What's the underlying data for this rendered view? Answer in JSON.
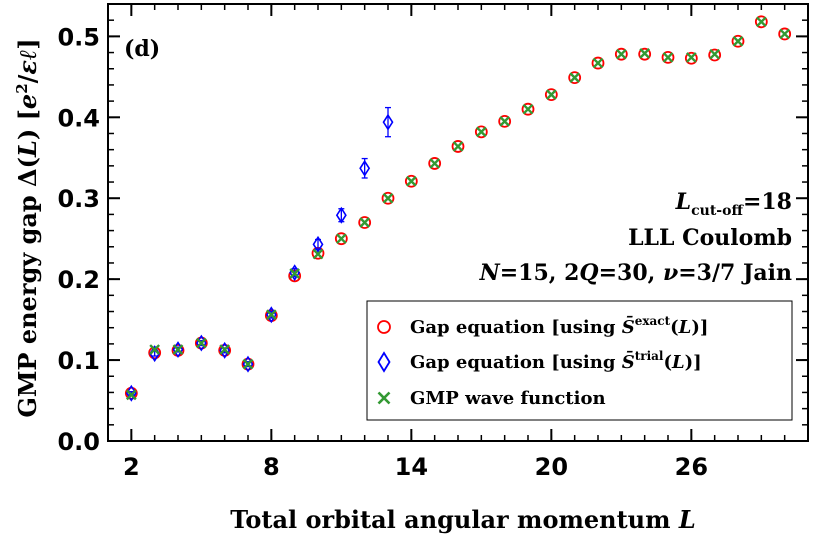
{
  "chart_data": {
    "type": "scatter",
    "panel_label": "(d)",
    "xlabel": "Total orbital angular momentum L",
    "ylabel": "GMP energy gap Δ(L) [e²/εℓ]",
    "xlim": [
      1,
      31
    ],
    "ylim": [
      0.0,
      0.54
    ],
    "xticks": [
      2,
      8,
      14,
      20,
      26
    ],
    "yticks": [
      0.0,
      0.1,
      0.2,
      0.3,
      0.4,
      0.5
    ],
    "grid": false,
    "legend_position": "bottom-right",
    "annotations": [
      "L_cut-off=18",
      "LLL Coulomb",
      "N=15, 2Q=30, ν=3/7 Jain"
    ],
    "series": [
      {
        "name": "Gap equation [using S̄exact(L)]",
        "marker": "circle",
        "color": "#ff0000",
        "x": [
          2,
          3,
          4,
          5,
          6,
          7,
          8,
          9,
          10,
          11,
          12,
          13,
          14,
          15,
          16,
          17,
          18,
          19,
          20,
          21,
          22,
          23,
          24,
          25,
          26,
          27,
          28,
          29,
          30
        ],
        "y": [
          0.059,
          0.109,
          0.112,
          0.121,
          0.112,
          0.095,
          0.155,
          0.204,
          0.232,
          0.25,
          0.27,
          0.3,
          0.321,
          0.343,
          0.364,
          0.382,
          0.395,
          0.41,
          0.428,
          0.449,
          0.467,
          0.478,
          0.478,
          0.474,
          0.473,
          0.477,
          0.494,
          0.518,
          0.503
        ]
      },
      {
        "name": "Gap equation [using S̄trial(L)]",
        "marker": "diamond",
        "color": "#0000ff",
        "x": [
          2,
          3,
          4,
          5,
          6,
          7,
          8,
          9,
          10,
          11,
          12,
          13
        ],
        "y": [
          0.059,
          0.108,
          0.113,
          0.121,
          0.112,
          0.095,
          0.156,
          0.208,
          0.243,
          0.279,
          0.337,
          0.394
        ],
        "yerr": [
          0.002,
          0.003,
          0.003,
          0.003,
          0.003,
          0.003,
          0.004,
          0.005,
          0.006,
          0.008,
          0.012,
          0.018
        ]
      },
      {
        "name": "GMP wave function",
        "marker": "x",
        "color": "#339933",
        "x": [
          2,
          3,
          4,
          5,
          6,
          7,
          8,
          9,
          10,
          11,
          12,
          13,
          14,
          15,
          16,
          17,
          18,
          19,
          20,
          21,
          22,
          23,
          24,
          25,
          26,
          27,
          28,
          29,
          30
        ],
        "y": [
          0.057,
          0.113,
          0.113,
          0.121,
          0.113,
          0.095,
          0.156,
          0.207,
          0.231,
          0.25,
          0.27,
          0.3,
          0.321,
          0.343,
          0.364,
          0.382,
          0.395,
          0.41,
          0.428,
          0.449,
          0.467,
          0.478,
          0.479,
          0.474,
          0.474,
          0.478,
          0.494,
          0.518,
          0.503
        ]
      }
    ]
  }
}
